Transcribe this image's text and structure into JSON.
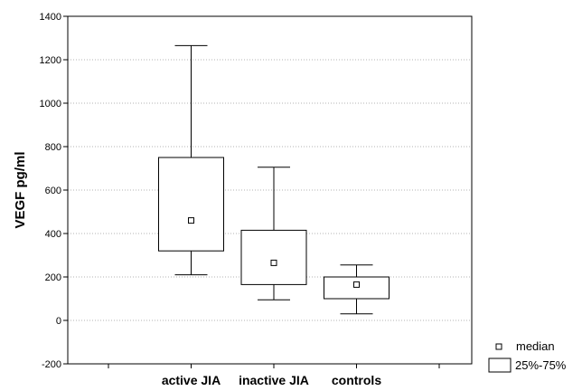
{
  "chart_data": {
    "type": "boxplot",
    "title": "",
    "xlabel": "",
    "ylabel": "VEGF  pg/ml",
    "ylim": [
      -200,
      1400
    ],
    "yticks": [
      "-200",
      "0",
      "200",
      "400",
      "600",
      "800",
      "1000",
      "1200",
      "1400"
    ],
    "ytick_values": [
      -200,
      0,
      200,
      400,
      600,
      800,
      1000,
      1200,
      1400
    ],
    "grid": "horizontal dotted",
    "categories": [
      "active JIA",
      "inactive JIA",
      "controls"
    ],
    "boxes": [
      {
        "category": "active JIA",
        "min": 210,
        "q1": 320,
        "median": 460,
        "q3": 750,
        "max": 1265
      },
      {
        "category": "inactive JIA",
        "min": 95,
        "q1": 165,
        "median": 265,
        "q3": 415,
        "max": 705
      },
      {
        "category": "controls",
        "min": 30,
        "q1": 100,
        "median": 165,
        "q3": 200,
        "max": 255
      }
    ],
    "legend": {
      "position": "bottom-right",
      "entries": [
        {
          "symbol": "small-square",
          "label": "median"
        },
        {
          "symbol": "box",
          "label": "25%-75%"
        }
      ]
    },
    "colors": {
      "lines": "#000000",
      "grid": "#9a9a9a",
      "background": "#ffffff"
    }
  }
}
